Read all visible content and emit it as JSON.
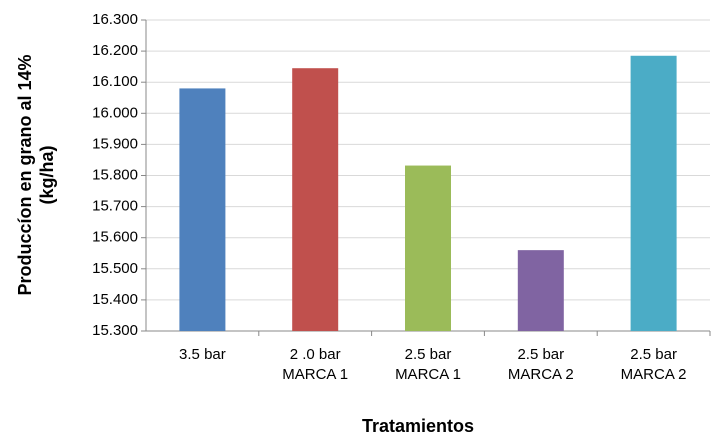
{
  "chart_data": {
    "type": "bar",
    "y_label": [
      "Produccíon en grano al 14%",
      "(kg/ha)"
    ],
    "x_label": "Tratamientos",
    "categories": [
      [
        "3.5 bar"
      ],
      [
        "2 .0 bar",
        "MARCA 1"
      ],
      [
        "2.5 bar",
        "MARCA 1"
      ],
      [
        "2.5 bar",
        "MARCA 2"
      ],
      [
        "2.5 bar",
        "MARCA 2"
      ]
    ],
    "values": [
      16080,
      16145,
      15832,
      15560,
      16185
    ],
    "colors": [
      "#4f81bd",
      "#c0504d",
      "#9bbb59",
      "#8064a2",
      "#4bacc6"
    ],
    "ylim": [
      15300,
      16300
    ],
    "yticks": [
      {
        "value": 15300,
        "label": "15.300"
      },
      {
        "value": 15400,
        "label": "15.400"
      },
      {
        "value": 15500,
        "label": "15.500"
      },
      {
        "value": 15600,
        "label": "15.600"
      },
      {
        "value": 15700,
        "label": "15.700"
      },
      {
        "value": 15800,
        "label": "15.800"
      },
      {
        "value": 15900,
        "label": "15.900"
      },
      {
        "value": 16000,
        "label": "16.000"
      },
      {
        "value": 16100,
        "label": "16.100"
      },
      {
        "value": 16200,
        "label": "16.200"
      },
      {
        "value": 16300,
        "label": "16.300"
      }
    ],
    "grid": true
  }
}
